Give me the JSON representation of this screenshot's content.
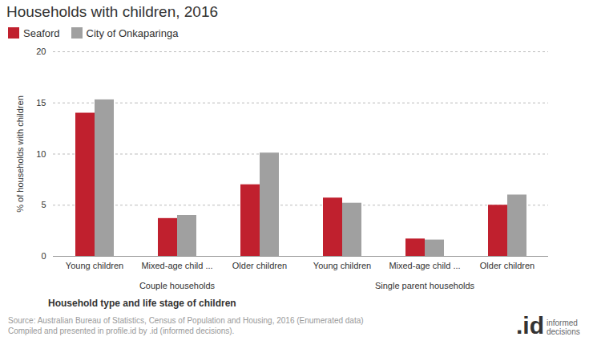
{
  "chart_data": {
    "type": "bar",
    "title": "Households with children, 2016",
    "categories": [
      "Young children",
      "Mixed-age child ...",
      "Older children",
      "Young children",
      "Mixed-age child ...",
      "Older children"
    ],
    "category_groups": [
      "Couple households",
      "Couple households",
      "Couple households",
      "Single parent households",
      "Single parent households",
      "Single parent households"
    ],
    "series": [
      {
        "name": "Seaford",
        "color": "#c0202e",
        "values": [
          14.0,
          3.7,
          7.0,
          5.7,
          1.7,
          5.0
        ]
      },
      {
        "name": "City of Onkaparinga",
        "color": "#a0a0a0",
        "values": [
          15.3,
          4.0,
          10.1,
          5.2,
          1.6,
          6.0
        ]
      }
    ],
    "x_label": "Household type and life stage of children",
    "y_label": "% of households with children",
    "ylim": [
      0,
      20
    ],
    "yticks": [
      0,
      5,
      10,
      15,
      20
    ],
    "grid": true,
    "legend": "top left",
    "source": [
      "Source: Australian Bureau of Statistics, Census of Population and Housing, 2016 (Enumerated data)",
      "Compiled and presented in profile.id by .id (informed decisions)."
    ],
    "logo": ".id",
    "logo_text": "informed decisions"
  }
}
